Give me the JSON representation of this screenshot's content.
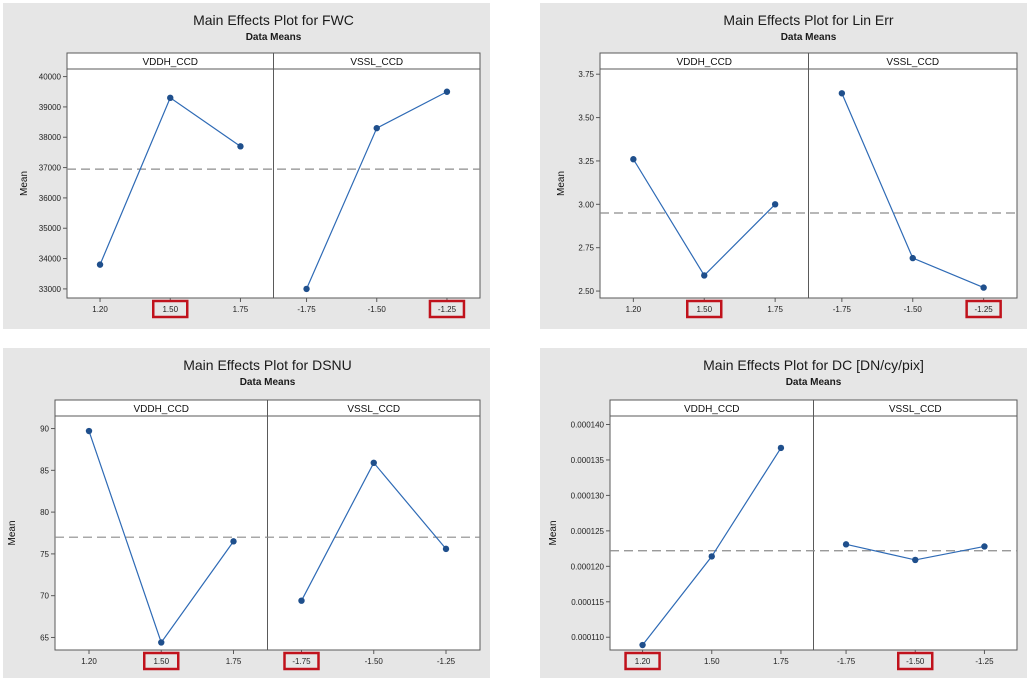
{
  "chart_data": [
    {
      "type": "line",
      "title": "Main Effects Plot for FWC",
      "subtitle": "Data Means",
      "ylabel": "Mean",
      "ylim": [
        32700,
        40250
      ],
      "yticks": [
        33000,
        34000,
        35000,
        36000,
        37000,
        38000,
        39000,
        40000
      ],
      "ytick_labels": [
        "33000",
        "34000",
        "35000",
        "36000",
        "37000",
        "38000",
        "39000",
        "40000"
      ],
      "reference_mean": 36950,
      "grid": false,
      "panels": [
        {
          "name": "VDDH_CCD",
          "categories": [
            "1.20",
            "1.50",
            "1.75"
          ],
          "values": [
            33800,
            39300,
            37700
          ],
          "highlighted": [
            "1.50"
          ]
        },
        {
          "name": "VSSL_CCD",
          "categories": [
            "-1.75",
            "-1.50",
            "-1.25"
          ],
          "values": [
            33000,
            38300,
            39500
          ],
          "highlighted": [
            "-1.25"
          ]
        }
      ]
    },
    {
      "type": "line",
      "title": "Main Effects Plot for Lin Err",
      "subtitle": "Data Means",
      "ylabel": "Mean",
      "ylim": [
        2.46,
        3.78
      ],
      "yticks": [
        2.5,
        2.75,
        3.0,
        3.25,
        3.5,
        3.75
      ],
      "ytick_labels": [
        "2.50",
        "2.75",
        "3.00",
        "3.25",
        "3.50",
        "3.75"
      ],
      "reference_mean": 2.95,
      "grid": false,
      "panels": [
        {
          "name": "VDDH_CCD",
          "categories": [
            "1.20",
            "1.50",
            "1.75"
          ],
          "values": [
            3.26,
            2.59,
            3.0
          ],
          "highlighted": [
            "1.50"
          ]
        },
        {
          "name": "VSSL_CCD",
          "categories": [
            "-1.75",
            "-1.50",
            "-1.25"
          ],
          "values": [
            3.64,
            2.69,
            2.52
          ],
          "highlighted": [
            "-1.25"
          ]
        }
      ]
    },
    {
      "type": "line",
      "title": "Main Effects Plot for DSNU",
      "subtitle": "Data Means",
      "ylabel": "Mean",
      "ylim": [
        63.5,
        91.5
      ],
      "yticks": [
        65,
        70,
        75,
        80,
        85,
        90
      ],
      "ytick_labels": [
        "65",
        "70",
        "75",
        "80",
        "85",
        "90"
      ],
      "reference_mean": 77,
      "grid": false,
      "panels": [
        {
          "name": "VDDH_CCD",
          "categories": [
            "1.20",
            "1.50",
            "1.75"
          ],
          "values": [
            89.7,
            64.4,
            76.5
          ],
          "highlighted": [
            "1.50"
          ]
        },
        {
          "name": "VSSL_CCD",
          "categories": [
            "-1.75",
            "-1.50",
            "-1.25"
          ],
          "values": [
            69.4,
            85.9,
            75.6
          ],
          "highlighted": [
            "-1.75"
          ]
        }
      ]
    },
    {
      "type": "line",
      "title": "Main Effects Plot for DC [DN/cy/pix]",
      "subtitle": "Data Means",
      "ylabel": "Mean",
      "ylim": [
        0.0001082,
        0.0001412
      ],
      "yticks": [
        0.00011,
        0.000115,
        0.00012,
        0.000125,
        0.00013,
        0.000135,
        0.00014
      ],
      "ytick_labels": [
        "0.000110",
        "0.000115",
        "0.000120",
        "0.000125",
        "0.000130",
        "0.000135",
        "0.000140"
      ],
      "reference_mean": 0.0001222,
      "grid": false,
      "panels": [
        {
          "name": "VDDH_CCD",
          "categories": [
            "1.20",
            "1.50",
            "1.75"
          ],
          "values": [
            0.0001089,
            0.0001214,
            0.0001367
          ],
          "highlighted": [
            "1.20"
          ]
        },
        {
          "name": "VSSL_CCD",
          "categories": [
            "-1.75",
            "-1.50",
            "-1.25"
          ],
          "values": [
            0.0001231,
            0.0001209,
            0.0001228
          ],
          "highlighted": [
            "-1.50"
          ]
        }
      ]
    }
  ],
  "colors": {
    "background": "#e6e6e6",
    "plot_area": "#ffffff",
    "series": "#2e6ab5",
    "marker": "#1f4f8c",
    "reference_line": "#8c8c8c",
    "highlight_box": "#c0121c"
  }
}
